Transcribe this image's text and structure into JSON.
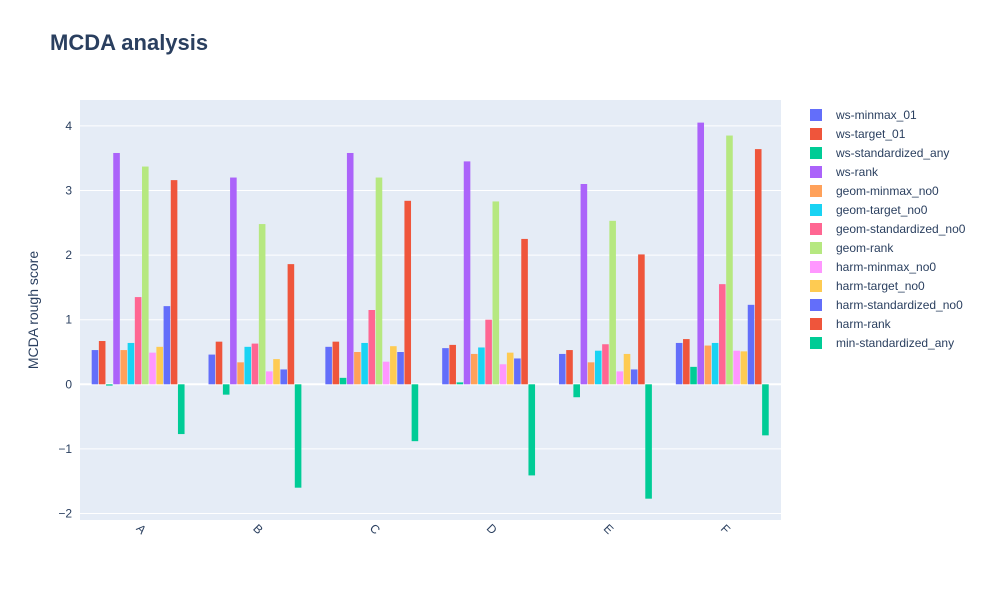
{
  "chart_data": {
    "type": "bar",
    "title": "MCDA analysis",
    "xlabel": "",
    "ylabel": "MCDA rough score",
    "ylim": [
      -2.1,
      4.4
    ],
    "yticks": [
      -2,
      -1,
      0,
      1,
      2,
      3,
      4
    ],
    "ytick_labels": [
      "−2",
      "−1",
      "0",
      "1",
      "2",
      "3",
      "4"
    ],
    "grid": true,
    "legend_position": "right",
    "categories": [
      "A",
      "B",
      "C",
      "D",
      "E",
      "F"
    ],
    "series": [
      {
        "name": "ws-minmax_01",
        "color": "#636efa",
        "values": [
          0.53,
          0.46,
          0.58,
          0.56,
          0.47,
          0.64
        ]
      },
      {
        "name": "ws-target_01",
        "color": "#ef553b",
        "values": [
          0.67,
          0.66,
          0.66,
          0.61,
          0.53,
          0.7
        ]
      },
      {
        "name": "ws-standardized_any",
        "color": "#00cc96",
        "values": [
          -0.02,
          -0.16,
          0.1,
          0.03,
          -0.2,
          0.27
        ]
      },
      {
        "name": "ws-rank",
        "color": "#ab63fa",
        "values": [
          3.58,
          3.2,
          3.58,
          3.45,
          3.1,
          4.05
        ]
      },
      {
        "name": "geom-minmax_no0",
        "color": "#ffa15a",
        "values": [
          0.53,
          0.34,
          0.5,
          0.47,
          0.34,
          0.6
        ]
      },
      {
        "name": "geom-target_no0",
        "color": "#19d3f3",
        "values": [
          0.64,
          0.58,
          0.64,
          0.57,
          0.52,
          0.64
        ]
      },
      {
        "name": "geom-standardized_no0",
        "color": "#ff6692",
        "values": [
          1.35,
          0.63,
          1.15,
          1.0,
          0.62,
          1.55
        ]
      },
      {
        "name": "geom-rank",
        "color": "#b6e880",
        "values": [
          3.37,
          2.48,
          3.2,
          2.83,
          2.53,
          3.85
        ]
      },
      {
        "name": "harm-minmax_no0",
        "color": "#ff97ff",
        "values": [
          0.49,
          0.2,
          0.35,
          0.31,
          0.2,
          0.52
        ]
      },
      {
        "name": "harm-target_no0",
        "color": "#fecb52",
        "values": [
          0.58,
          0.39,
          0.59,
          0.49,
          0.47,
          0.51
        ]
      },
      {
        "name": "harm-standardized_no0",
        "color": "#636efa",
        "values": [
          1.21,
          0.23,
          0.5,
          0.4,
          0.23,
          1.23
        ]
      },
      {
        "name": "harm-rank",
        "color": "#ef553b",
        "values": [
          3.16,
          1.86,
          2.84,
          2.25,
          2.01,
          3.64
        ]
      },
      {
        "name": "min-standardized_any",
        "color": "#00cc96",
        "values": [
          -0.77,
          -1.6,
          -0.88,
          -1.41,
          -1.77,
          -0.79
        ]
      }
    ]
  }
}
